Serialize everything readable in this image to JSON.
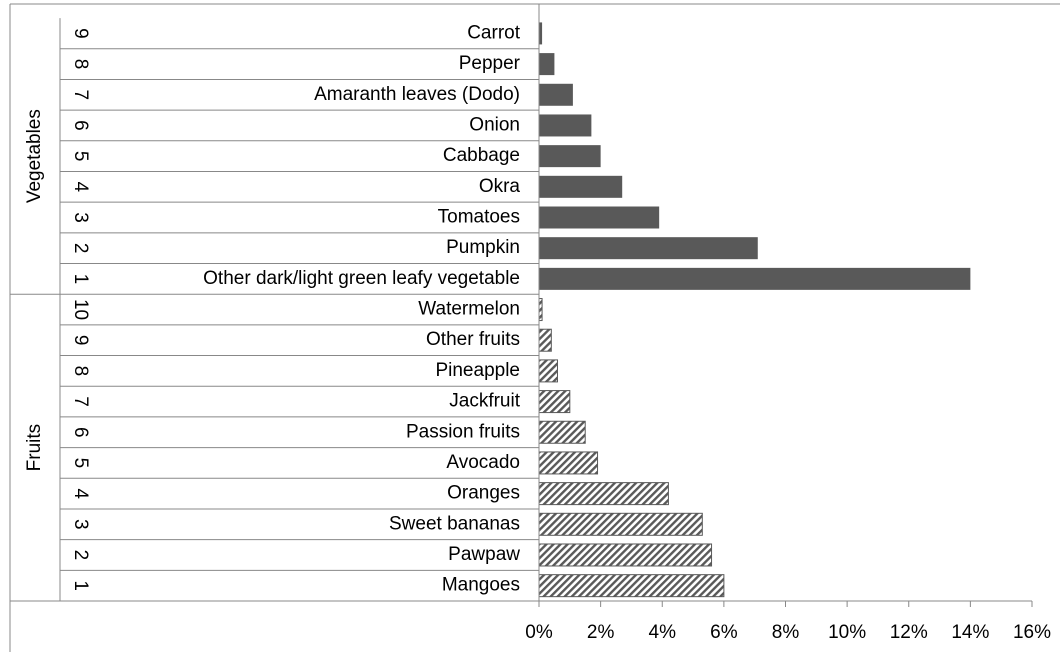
{
  "chart_data": {
    "type": "bar",
    "groups": [
      {
        "name": "Vegetables",
        "pattern": "solid",
        "color": "#595959",
        "ranks": [
          9,
          8,
          7,
          6,
          5,
          4,
          3,
          2,
          1
        ],
        "categories": [
          "Carrot",
          "Pepper",
          "Amaranth leaves (Dodo)",
          "Onion",
          "Cabbage",
          "Okra",
          "Tomatoes",
          "Pumpkin",
          "Other dark/light green leafy vegetable"
        ],
        "values": [
          0.1,
          0.5,
          1.1,
          1.7,
          2.0,
          2.7,
          3.9,
          7.1,
          14.0
        ]
      },
      {
        "name": "Fruits",
        "pattern": "hatch",
        "color": "#595959",
        "ranks": [
          10,
          9,
          8,
          7,
          6,
          5,
          4,
          3,
          2,
          1
        ],
        "categories": [
          "Watermelon",
          "Other fruits",
          "Pineapple",
          "Jackfruit",
          "Passion fruits",
          "Avocado",
          "Oranges",
          "Sweet bananas",
          "Pawpaw",
          "Mangoes"
        ],
        "values": [
          0.1,
          0.4,
          0.6,
          1.0,
          1.5,
          1.9,
          4.2,
          5.3,
          5.6,
          6.0
        ]
      }
    ],
    "xlim": [
      0,
      16
    ],
    "xticks": [
      {
        "value": 0,
        "label": "0%"
      },
      {
        "value": 2,
        "label": "2%"
      },
      {
        "value": 4,
        "label": "4%"
      },
      {
        "value": 6,
        "label": "6%"
      },
      {
        "value": 8,
        "label": "8%"
      },
      {
        "value": 10,
        "label": "10%"
      },
      {
        "value": 12,
        "label": "12%"
      },
      {
        "value": 14,
        "label": "14%"
      },
      {
        "value": 16,
        "label": "16%"
      }
    ]
  }
}
